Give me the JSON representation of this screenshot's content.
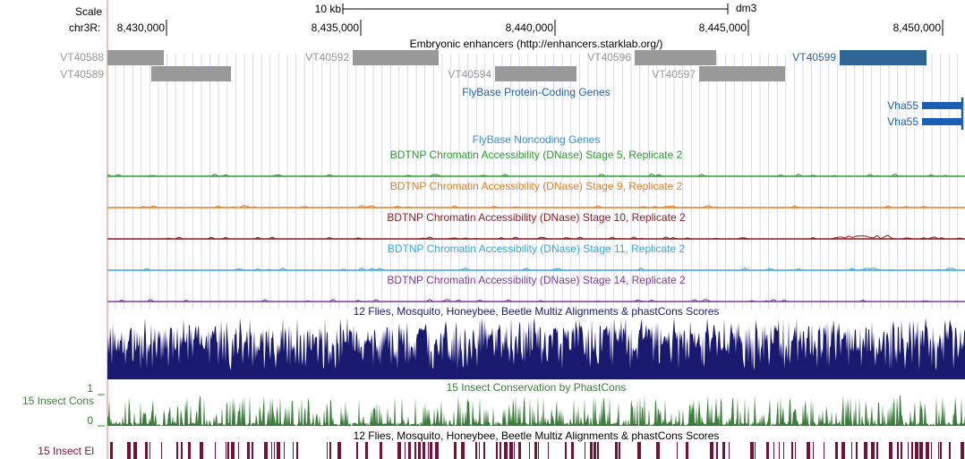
{
  "ruler": {
    "scale_label": "Scale",
    "scale_bar_label": "10 kb",
    "assembly": "dm3",
    "chrom_label": "chr3R:",
    "ticks": [
      "8,430,000",
      "8,435,000",
      "8,440,000",
      "8,445,000",
      "8,450,000"
    ]
  },
  "tracks": {
    "enhancers": {
      "title": "Embryonic enhancers (http://enhancers.starklab.org/)",
      "items": [
        {
          "name": "VT40588",
          "highlight": false
        },
        {
          "name": "VT40589",
          "highlight": false
        },
        {
          "name": "VT40592",
          "highlight": false
        },
        {
          "name": "VT40594",
          "highlight": false
        },
        {
          "name": "VT40596",
          "highlight": false
        },
        {
          "name": "VT40597",
          "highlight": false
        },
        {
          "name": "VT40599",
          "highlight": true
        }
      ]
    },
    "flybase_coding": {
      "title": "FlyBase Protein-Coding Genes",
      "genes": [
        "Vha55",
        "Vha55"
      ]
    },
    "flybase_noncoding": {
      "title": "FlyBase Noncoding Genes"
    },
    "dnase": [
      {
        "title": "BDTNP Chromatin Accessibility (DNase) Stage 5, Replicate 2",
        "color": "#2aa02a"
      },
      {
        "title": "BDTNP Chromatin Accessibility (DNase) Stage 9, Replicate 2",
        "color": "#e67e22"
      },
      {
        "title": "BDTNP Chromatin Accessibility (DNase) Stage 10, Replicate 2",
        "color": "#8b1a1a"
      },
      {
        "title": "BDTNP Chromatin Accessibility (DNase) Stage 11, Replicate 2",
        "color": "#3ba7d6"
      },
      {
        "title": "BDTNP Chromatin Accessibility (DNase) Stage 14, Replicate 2",
        "color": "#7d3c98"
      }
    ],
    "multiz": {
      "title": "12 Flies, Mosquito, Honeybee, Beetle Multiz Alignments & phastCons Scores",
      "color": "#191970"
    },
    "cons15": {
      "title": "15 Insect Conservation by PhastCons",
      "side_label": "15 Insect Cons",
      "axis_max": "1",
      "axis_min": "0",
      "color": "#3b7d3b"
    },
    "multiz2": {
      "title": "12 Flies, Mosquito, Honeybee, Beetle Multiz Alignments & phastCons Scores"
    },
    "el15": {
      "side_label": "15 Insect El",
      "color": "#7a0f35"
    }
  },
  "colors": {
    "gene_blue": "#1a5fb4",
    "enhancer_gray": "#999999",
    "enhancer_highlight": "#2f6496",
    "grid": "#d8d8f5",
    "left_edge": "#f4a6a6"
  }
}
